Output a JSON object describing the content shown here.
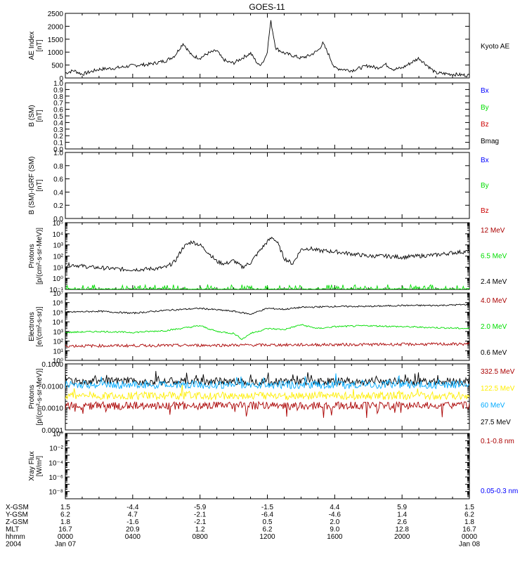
{
  "title": "GOES-11",
  "colors": {
    "black": "#000000",
    "blue": "#0000ff",
    "green": "#00dd00",
    "red": "#cc0000",
    "darkred": "#aa0000",
    "cyan": "#00aaff",
    "yellow": "#ffee00"
  },
  "chart_data": [
    {
      "type": "line",
      "ylabel": [
        "AE Index",
        "[nT]"
      ],
      "ylim": [
        0,
        2600
      ],
      "yticks": [
        "0",
        "500",
        "1000",
        "1500",
        "2000",
        "2500"
      ],
      "right_labels": [
        {
          "text": "Kyoto AE",
          "color": "black"
        }
      ],
      "series": [
        {
          "name": "Kyoto AE",
          "color": "black",
          "x": [
            0,
            0.5,
            1,
            2,
            3,
            4,
            5,
            6,
            6.5,
            7,
            7.5,
            8,
            8.5,
            9,
            9.3,
            9.6,
            10,
            10.5,
            11,
            11.5,
            11.8,
            12,
            12.2,
            12.5,
            13,
            13.5,
            14,
            14.5,
            15,
            15.3,
            15.6,
            16,
            17,
            18,
            18.5,
            19,
            19.5,
            20,
            21,
            22,
            23,
            24
          ],
          "y": [
            200,
            300,
            150,
            350,
            400,
            500,
            550,
            700,
            900,
            1400,
            900,
            800,
            1000,
            1100,
            800,
            650,
            600,
            800,
            1000,
            500,
            700,
            1100,
            2300,
            1200,
            1000,
            900,
            800,
            900,
            1100,
            1400,
            1000,
            400,
            300,
            500,
            400,
            550,
            350,
            400,
            800,
            200,
            150,
            100
          ]
        }
      ]
    },
    {
      "type": "line",
      "ylabel": [
        "B (SM)",
        "[nT]"
      ],
      "ylim": [
        0,
        1
      ],
      "yticks": [
        "0.0",
        "0.1",
        "0.2",
        "0.3",
        "0.4",
        "0.5",
        "0.6",
        "0.7",
        "0.8",
        "0.9",
        "1.0"
      ],
      "right_labels": [
        {
          "text": "Bx",
          "color": "blue"
        },
        {
          "text": "By",
          "color": "green"
        },
        {
          "text": "Bz",
          "color": "red"
        },
        {
          "text": "Bmag",
          "color": "black"
        }
      ],
      "series": []
    },
    {
      "type": "line",
      "ylabel": [
        "B (SM)-IGRF (SM)",
        "[nT]"
      ],
      "ylim": [
        0,
        1
      ],
      "yticks": [
        "0.0",
        "0.2",
        "0.4",
        "0.6",
        "0.8",
        "1.0"
      ],
      "right_labels": [
        {
          "text": "Bx",
          "color": "blue"
        },
        {
          "text": "By",
          "color": "green"
        },
        {
          "text": "Bz",
          "color": "red"
        }
      ],
      "series": []
    },
    {
      "type": "line",
      "log_scale": true,
      "ylabel": [
        "Protons",
        "[p/(cm²-s-sr-MeV)]"
      ],
      "ylim": [
        -1,
        5
      ],
      "yticks": [
        "10⁻¹",
        "10⁰",
        "10¹",
        "10²",
        "10³",
        "10⁴",
        "10⁵"
      ],
      "right_labels": [
        {
          "text": "12 MeV",
          "color": "darkred"
        },
        {
          "text": "6.5 MeV",
          "color": "green"
        },
        {
          "text": "2.4 MeV",
          "color": "black"
        }
      ],
      "series": [
        {
          "name": "2.4 MeV",
          "color": "black",
          "x": [
            0.5,
            1.5,
            2.5,
            3.5,
            4.5,
            5.5,
            6,
            6.5,
            7,
            7.5,
            8,
            8.5,
            9,
            9.5,
            10,
            10.5,
            11,
            11.5,
            12,
            12.3,
            12.6,
            13,
            13.5,
            14,
            14.5,
            15,
            16,
            17,
            18,
            19,
            20,
            21,
            22,
            23,
            23.8
          ],
          "y": [
            1.2,
            1.0,
            0.9,
            0.8,
            0.8,
            0.9,
            1.0,
            1.5,
            2.8,
            3.3,
            3.0,
            2.3,
            1.5,
            1.3,
            1.6,
            1.0,
            1.4,
            2.4,
            3.3,
            3.7,
            3.2,
            1.8,
            1.3,
            2.6,
            2.7,
            2.5,
            2.4,
            2.2,
            2.0,
            2.0,
            1.9,
            2.0,
            2.1,
            2.3,
            2.4
          ]
        },
        {
          "name": "6.5 MeV",
          "color": "green",
          "x": [
            0,
            24
          ],
          "y": [
            -1,
            -1
          ]
        }
      ]
    },
    {
      "type": "line",
      "log_scale": true,
      "ylabel": [
        "Electrons",
        "[e/(cm²-s-sr)]"
      ],
      "ylim": [
        0,
        7
      ],
      "yticks": [
        "10⁰",
        "10¹",
        "10²",
        "10³",
        "10⁴",
        "10⁵",
        "10⁶",
        "10⁷"
      ],
      "right_labels": [
        {
          "text": "4.0 MeV",
          "color": "darkred"
        },
        {
          "text": "2.0 MeV",
          "color": "green"
        },
        {
          "text": "0.6 MeV",
          "color": "black"
        }
      ],
      "series": [
        {
          "name": "0.6 MeV",
          "color": "black",
          "x": [
            0,
            2,
            4,
            6,
            8,
            10,
            11,
            12,
            13,
            14,
            16,
            18,
            20,
            22,
            24
          ],
          "y": [
            5.0,
            5.1,
            4.9,
            5.2,
            5.4,
            5.1,
            4.8,
            5.4,
            5.3,
            5.5,
            5.6,
            5.6,
            5.7,
            5.7,
            5.8
          ]
        },
        {
          "name": "2.0 MeV",
          "color": "green",
          "x": [
            0,
            2,
            4,
            6,
            8,
            9,
            10,
            10.5,
            11,
            12,
            13,
            14,
            15,
            16,
            18,
            20,
            22,
            24
          ],
          "y": [
            2.9,
            3.0,
            2.9,
            3.1,
            3.6,
            3.0,
            2.8,
            2.2,
            2.8,
            3.3,
            3.2,
            3.7,
            3.3,
            3.5,
            3.6,
            3.5,
            3.4,
            3.3
          ]
        },
        {
          "name": "4.0 MeV",
          "color": "darkred",
          "x": [
            0,
            24
          ],
          "y": [
            1.5,
            1.7
          ]
        }
      ]
    },
    {
      "type": "line",
      "log_scale": true,
      "ylabel": [
        "Protons",
        "[p/(cm²-s-sr-MeV)]"
      ],
      "ylim": [
        -4,
        -1
      ],
      "yticks": [
        "0.0001",
        "0.0010",
        "0.0100",
        "0.1000"
      ],
      "right_labels": [
        {
          "text": "332.5 MeV",
          "color": "darkred"
        },
        {
          "text": "122.5 MeV",
          "color": "yellow"
        },
        {
          "text": "60 MeV",
          "color": "cyan"
        },
        {
          "text": "27.5 MeV",
          "color": "black"
        }
      ],
      "series": [
        {
          "name": "27.5 MeV",
          "color": "black",
          "x": [
            0,
            24
          ],
          "y": [
            -1.8,
            -1.8
          ]
        },
        {
          "name": "60 MeV",
          "color": "cyan",
          "x": [
            0,
            24
          ],
          "y": [
            -1.95,
            -1.95
          ]
        },
        {
          "name": "122.5 MeV",
          "color": "yellow",
          "x": [
            0,
            24
          ],
          "y": [
            -2.45,
            -2.45
          ]
        },
        {
          "name": "332.5 MeV",
          "color": "darkred",
          "x": [
            0,
            24
          ],
          "y": [
            -2.9,
            -2.9
          ]
        }
      ]
    },
    {
      "type": "line",
      "log_scale": true,
      "ylabel": [
        "Xray Flux",
        "[W/m²]"
      ],
      "ylim": [
        -9,
        0
      ],
      "yticks": [
        "10⁻⁹",
        "10⁻⁸",
        "10⁻⁷",
        "10⁻⁶",
        "10⁻⁵",
        "10⁻⁴",
        "10⁻³",
        "10⁻²",
        "10⁻¹",
        "10⁰"
      ],
      "ytick_labels_shown": [
        "10⁻⁸",
        "10⁻⁶",
        "10⁻⁴",
        "10⁻²",
        "10⁰"
      ],
      "right_labels": [
        {
          "text": "0.1-0.8 nm",
          "color": "darkred"
        },
        {
          "text": "0.05-0.3 nm",
          "color": "blue"
        }
      ],
      "series": []
    }
  ],
  "x_axis": {
    "xlim": [
      0,
      24
    ],
    "rows": [
      {
        "label": "X-GSM",
        "values": [
          "1.5",
          "-4.4",
          "-5.9",
          "-1.5",
          "4.4",
          "5.9",
          "1.5"
        ]
      },
      {
        "label": "Y-GSM",
        "values": [
          "6.2",
          "4.7",
          "-2.1",
          "-6.4",
          "-4.6",
          "1.4",
          "6.2"
        ]
      },
      {
        "label": "Z-GSM",
        "values": [
          "1.8",
          "-1.6",
          "-2.1",
          "0.5",
          "2.0",
          "2.6",
          "1.8"
        ]
      },
      {
        "label": "MLT",
        "values": [
          "16.7",
          "20.9",
          "1.2",
          "6.2",
          "9.0",
          "12.8",
          "16.7"
        ]
      },
      {
        "label": "hhmm",
        "values": [
          "0000",
          "0400",
          "0800",
          "1200",
          "1600",
          "2000",
          "0000"
        ]
      },
      {
        "label": "2004",
        "values": [
          "Jan 07",
          "",
          "",
          "",
          "",
          "",
          "Jan 08"
        ]
      }
    ]
  }
}
